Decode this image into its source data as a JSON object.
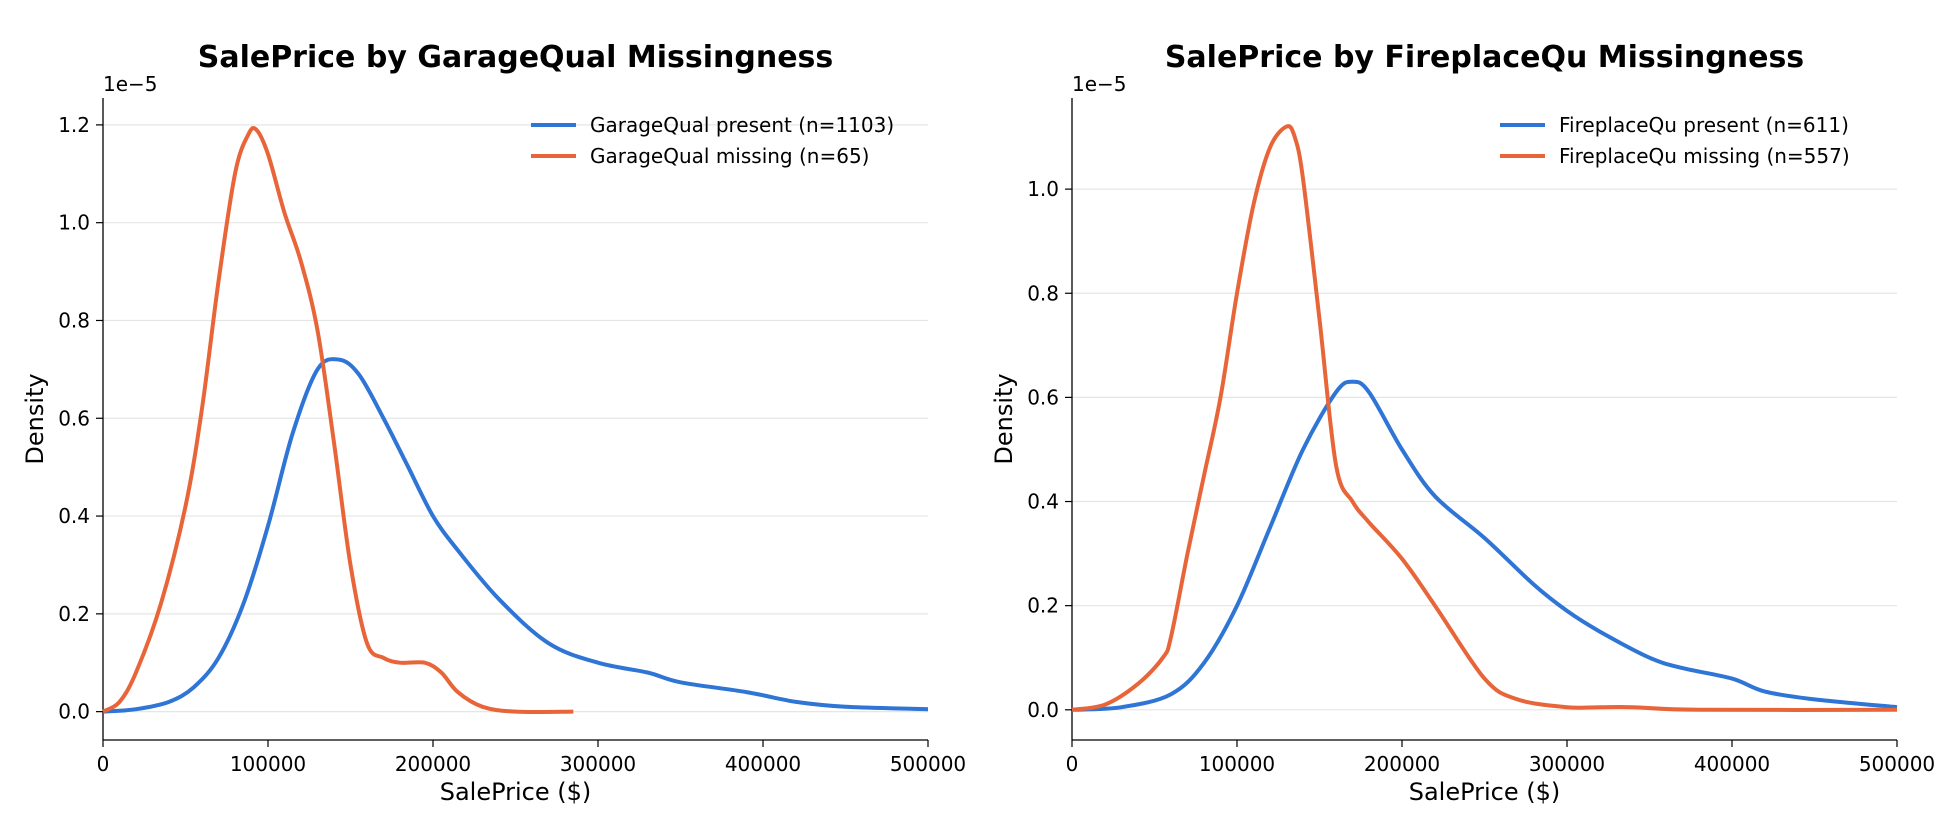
{
  "chart_data": [
    {
      "type": "line",
      "title": "SalePrice by GarageQual Missingness",
      "xlabel": "SalePrice ($)",
      "ylabel": "Density",
      "y_offset_label": "1e−5",
      "xlim": [
        0,
        500000
      ],
      "ylim": [
        -0.058,
        1.255
      ],
      "x_ticks": [
        "0",
        "100000",
        "200000",
        "300000",
        "400000",
        "500000"
      ],
      "y_ticks": [
        "0.0",
        "0.2",
        "0.4",
        "0.6",
        "0.8",
        "1.0",
        "1.2"
      ],
      "grid": "horizontal",
      "legend_position": "top-right",
      "series": [
        {
          "name": "GarageQual present (n=1103)",
          "color": "#2e75d6",
          "x": [
            0,
            20000,
            40000,
            55000,
            70000,
            85000,
            100000,
            115000,
            130000,
            143000,
            155000,
            170000,
            185000,
            200000,
            215000,
            240000,
            270000,
            300000,
            330000,
            350000,
            390000,
            420000,
            450000,
            500000
          ],
          "y": [
            0.0,
            0.005,
            0.02,
            0.05,
            0.11,
            0.22,
            0.38,
            0.57,
            0.7,
            0.72,
            0.69,
            0.6,
            0.5,
            0.4,
            0.33,
            0.23,
            0.14,
            0.1,
            0.08,
            0.06,
            0.04,
            0.02,
            0.01,
            0.005
          ]
        },
        {
          "name": "GarageQual missing (n=65)",
          "color": "#e8653a",
          "x": [
            0,
            10000,
            20000,
            35000,
            50000,
            60000,
            70000,
            80000,
            88000,
            93000,
            100000,
            110000,
            120000,
            130000,
            140000,
            150000,
            160000,
            170000,
            180000,
            195000,
            205000,
            215000,
            230000,
            250000,
            285000
          ],
          "y": [
            0.0,
            0.02,
            0.08,
            0.22,
            0.42,
            0.62,
            0.88,
            1.1,
            1.18,
            1.19,
            1.14,
            1.02,
            0.92,
            0.78,
            0.55,
            0.3,
            0.14,
            0.11,
            0.1,
            0.1,
            0.08,
            0.04,
            0.01,
            0.0,
            0.0
          ]
        }
      ]
    },
    {
      "type": "line",
      "title": "SalePrice by FireplaceQu Missingness",
      "xlabel": "SalePrice ($)",
      "ylabel": "Density",
      "y_offset_label": "1e−5",
      "xlim": [
        0,
        500000
      ],
      "ylim": [
        -0.058,
        1.175
      ],
      "x_ticks": [
        "0",
        "100000",
        "200000",
        "300000",
        "400000",
        "500000"
      ],
      "y_ticks": [
        "0.0",
        "0.2",
        "0.4",
        "0.6",
        "0.8",
        "1.0"
      ],
      "grid": "horizontal",
      "legend_position": "top-right",
      "series": [
        {
          "name": "FireplaceQu present (n=611)",
          "color": "#2e75d6",
          "x": [
            0,
            30000,
            60000,
            80000,
            100000,
            120000,
            140000,
            160000,
            170000,
            180000,
            200000,
            220000,
            250000,
            280000,
            300000,
            320000,
            350000,
            370000,
            400000,
            420000,
            450000,
            500000
          ],
          "y": [
            0.0,
            0.005,
            0.03,
            0.09,
            0.2,
            0.35,
            0.5,
            0.61,
            0.63,
            0.61,
            0.5,
            0.41,
            0.33,
            0.24,
            0.19,
            0.15,
            0.1,
            0.08,
            0.06,
            0.035,
            0.02,
            0.005
          ]
        },
        {
          "name": "FireplaceQu missing (n=557)",
          "color": "#e8653a",
          "x": [
            0,
            20000,
            40000,
            55000,
            60000,
            70000,
            80000,
            90000,
            100000,
            110000,
            120000,
            130000,
            135000,
            140000,
            150000,
            160000,
            170000,
            180000,
            200000,
            220000,
            250000,
            270000,
            300000,
            320000,
            340000,
            380000,
            500000
          ],
          "y": [
            0.0,
            0.01,
            0.05,
            0.1,
            0.14,
            0.3,
            0.45,
            0.6,
            0.8,
            0.97,
            1.08,
            1.12,
            1.1,
            1.02,
            0.75,
            0.47,
            0.4,
            0.36,
            0.29,
            0.2,
            0.06,
            0.02,
            0.005,
            0.005,
            0.005,
            0.0,
            0.0
          ]
        }
      ]
    }
  ]
}
